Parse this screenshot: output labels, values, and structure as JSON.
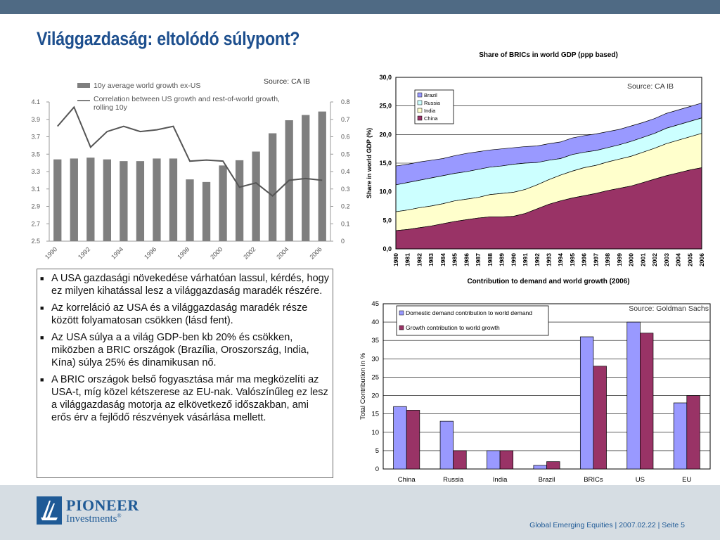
{
  "page": {
    "title": "Világgazdaság: eltolódó súlypont?",
    "footer_text": "Global Emerging Equities | 2007.02.22 | Seite 5",
    "logo_line1": "PIONEER",
    "logo_line2": "Investments",
    "logo_mark": "®"
  },
  "bullets": [
    "A USA gazdasági növekedése várhatóan lassul, kérdés, hogy ez milyen kihatással lesz a világgazdaság maradék részére.",
    "Az korreláció az USA és a világgazdaság maradék része között folyamatosan csökken (lásd fent).",
    "Az USA súlya a a világ GDP-ben kb 20% és csökken, miközben a BRIC országok (Brazília, Oroszország, India, Kína) súlya 25% és dinamikusan nő.",
    "A BRIC országok belső fogyasztása már ma megközelíti az USA-t, míg közel kétszerese az EU-nak. Valószínűleg ez lesz a világgazdaság motorja az elkövetkező időszakban, ami erős érv a fejlődő részvények vásárlása mellett."
  ],
  "chart_data": [
    {
      "type": "bar",
      "source": "Source: CA IB",
      "legend": [
        "10y average world growth ex-US",
        "Correlation between US growth and rest-of-world growth, rolling 10y"
      ],
      "categories": [
        "1990",
        "1991",
        "1992",
        "1993",
        "1994",
        "1995",
        "1996",
        "1997",
        "1998",
        "1999",
        "2000",
        "2001",
        "2002",
        "2003",
        "2004",
        "2005",
        "2006"
      ],
      "x_tick_labels": [
        "1990",
        "1992",
        "1994",
        "1996",
        "1998",
        "2000",
        "2002",
        "2004",
        "2006"
      ],
      "left_axis": {
        "ylim": [
          2.5,
          4.1
        ],
        "ticks": [
          "2.5",
          "2.7",
          "2.9",
          "3.1",
          "3.3",
          "3.5",
          "3.7",
          "3.9",
          "4.1"
        ]
      },
      "right_axis": {
        "ylim": [
          0,
          0.8
        ],
        "ticks": [
          "0",
          "0.1",
          "0.2",
          "0.3",
          "0.4",
          "0.5",
          "0.6",
          "0.7",
          "0.8"
        ]
      },
      "series": [
        {
          "name": "10y average world growth ex-US",
          "kind": "bar",
          "axis": "left",
          "color": "#7f7f7f",
          "values": [
            3.44,
            3.45,
            3.46,
            3.44,
            3.42,
            3.42,
            3.45,
            3.45,
            3.21,
            3.18,
            3.37,
            3.43,
            3.53,
            3.74,
            3.89,
            3.95,
            3.99
          ]
        },
        {
          "name": "Correlation between US growth and rest-of-world growth, rolling 10y",
          "kind": "line",
          "axis": "right",
          "color": "#555555",
          "values": [
            0.66,
            0.77,
            0.54,
            0.63,
            0.66,
            0.63,
            0.64,
            0.66,
            0.46,
            0.466,
            0.46,
            0.31,
            0.335,
            0.26,
            0.35,
            0.36,
            0.35
          ]
        }
      ]
    },
    {
      "type": "area",
      "title": "Share of BRICs in world GDP (ppp based)",
      "source": "Source: CA IB",
      "ylabel": "Share in world GDP (%)",
      "ylim": [
        0,
        30
      ],
      "y_ticks": [
        "0,0",
        "5,0",
        "10,0",
        "15,0",
        "20,0",
        "25,0",
        "30,0"
      ],
      "legend_position": "top-left",
      "categories": [
        "1980",
        "1981",
        "1982",
        "1983",
        "1984",
        "1985",
        "1986",
        "1987",
        "1988",
        "1989",
        "1990",
        "1991",
        "1992",
        "1993",
        "1994",
        "1995",
        "1996",
        "1997",
        "1998",
        "1999",
        "2000",
        "2001",
        "2002",
        "2003",
        "2004",
        "2005",
        "2006"
      ],
      "series": [
        {
          "name": "China",
          "color": "#993366",
          "values": [
            3.2,
            3.4,
            3.7,
            4.0,
            4.4,
            4.8,
            5.1,
            5.4,
            5.6,
            5.6,
            5.7,
            6.2,
            7.0,
            7.8,
            8.4,
            8.9,
            9.3,
            9.7,
            10.2,
            10.6,
            11.0,
            11.6,
            12.2,
            12.8,
            13.3,
            13.8,
            14.2
          ]
        },
        {
          "name": "India",
          "color": "#ffffcc",
          "values": [
            3.3,
            3.4,
            3.5,
            3.5,
            3.5,
            3.6,
            3.6,
            3.6,
            3.9,
            4.1,
            4.2,
            4.2,
            4.2,
            4.3,
            4.5,
            4.7,
            4.9,
            4.9,
            5.0,
            5.1,
            5.2,
            5.3,
            5.4,
            5.6,
            5.7,
            5.8,
            6.0
          ]
        },
        {
          "name": "Russia",
          "color": "#ccffff",
          "values": [
            4.7,
            4.8,
            4.8,
            4.9,
            4.9,
            4.8,
            4.8,
            4.9,
            4.8,
            4.8,
            4.9,
            4.6,
            3.9,
            3.4,
            2.9,
            2.9,
            2.7,
            2.6,
            2.5,
            2.5,
            2.6,
            2.6,
            2.6,
            2.7,
            2.7,
            2.7,
            2.7
          ]
        },
        {
          "name": "Brazil",
          "color": "#9999ff",
          "values": [
            3.3,
            3.2,
            3.2,
            3.1,
            3.0,
            3.1,
            3.2,
            3.1,
            3.0,
            3.0,
            2.9,
            2.9,
            2.9,
            2.9,
            2.9,
            2.9,
            2.9,
            2.9,
            2.8,
            2.7,
            2.7,
            2.6,
            2.6,
            2.6,
            2.6,
            2.6,
            2.6
          ]
        }
      ]
    },
    {
      "type": "bar",
      "title": "Contribution to demand and world growth (2006)",
      "source": "Source: Goldman Sachs",
      "ylabel": "Total Contribution in %",
      "ylim": [
        0,
        45
      ],
      "y_ticks": [
        "0",
        "5",
        "10",
        "15",
        "20",
        "25",
        "30",
        "35",
        "40",
        "45"
      ],
      "legend_position": "top-left",
      "categories": [
        "China",
        "Russia",
        "India",
        "Brazil",
        "BRICs",
        "US",
        "EU"
      ],
      "series": [
        {
          "name": "Domestic demand contribution to world demand",
          "color": "#9999ff",
          "values": [
            17,
            13,
            5,
            1,
            36,
            40,
            18
          ]
        },
        {
          "name": "Growth contribution to world growth",
          "color": "#993366",
          "values": [
            16,
            5,
            5,
            2,
            28,
            37,
            20
          ]
        }
      ]
    }
  ]
}
